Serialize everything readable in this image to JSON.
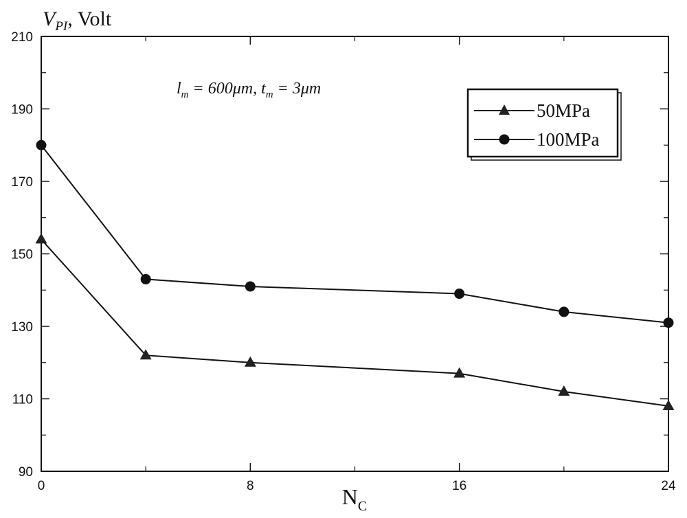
{
  "chart_data": {
    "type": "line",
    "ylabel_main": "V",
    "ylabel_sub": "PI",
    "ylabel_rest": ", Volt",
    "xlabel_main": "N",
    "xlabel_sub": "C",
    "annotation": {
      "l": "l",
      "l_sub": "m",
      "l_val": " = 600",
      "t": "t",
      "t_sub": "m",
      "t_val": " = 3",
      "mu": "μ",
      "m": "m",
      "sep": ","
    },
    "xlim": [
      0,
      24
    ],
    "ylim": [
      90,
      210
    ],
    "xticks": [
      0,
      8,
      16,
      24
    ],
    "xminor": [
      4,
      12,
      20
    ],
    "yticks": [
      90,
      110,
      130,
      150,
      170,
      190,
      210
    ],
    "grid": false,
    "legend_position": "top-right",
    "series": [
      {
        "name": "50MPa",
        "marker": "triangle",
        "x": [
          0,
          4,
          8,
          16,
          20,
          24
        ],
        "values": [
          154,
          122,
          120,
          117,
          112,
          108
        ]
      },
      {
        "name": "100MPa",
        "marker": "circle",
        "x": [
          0,
          4,
          8,
          16,
          20,
          24
        ],
        "values": [
          180,
          143,
          141,
          139,
          134,
          131
        ]
      }
    ]
  }
}
